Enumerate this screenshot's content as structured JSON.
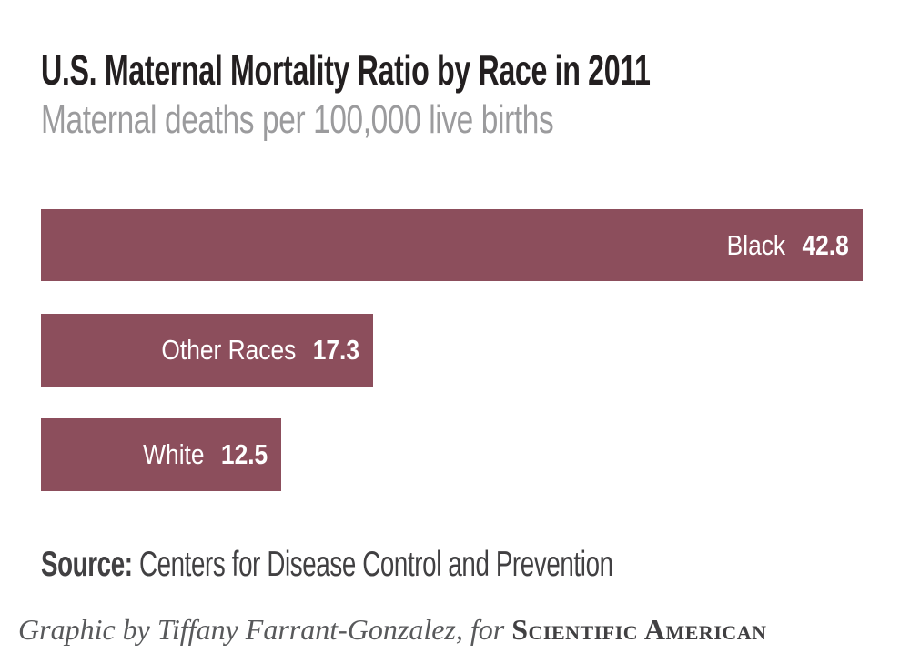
{
  "header": {
    "title": "U.S. Maternal Mortality Ratio by Race in 2011",
    "subtitle": "Maternal deaths per 100,000 live births"
  },
  "chart_data": {
    "type": "bar",
    "orientation": "horizontal",
    "title": "U.S. Maternal Mortality Ratio by Race in 2011",
    "subtitle": "Maternal deaths per 100,000 live births",
    "categories": [
      "Black",
      "Other Races",
      "White"
    ],
    "values": [
      42.8,
      17.3,
      12.5
    ],
    "value_labels": [
      "42.8",
      "17.3",
      "12.5"
    ],
    "xlim": [
      0,
      42.8
    ],
    "grid": false,
    "legend": "none",
    "value_label_position": "inside-right",
    "bar_color": "#8c4e5c",
    "bar_text_color": "#ffffff"
  },
  "bars": [
    {
      "label": "Black",
      "value": "42.8"
    },
    {
      "label": "Other Races",
      "value": "17.3"
    },
    {
      "label": "White",
      "value": "12.5"
    }
  ],
  "source": {
    "prefix": "Source:",
    "text": " Centers for Disease Control and Prevention"
  },
  "credit": {
    "byline": "Graphic by Tiffany Farrant-Gonzalez, for",
    "publication": "Scientific American"
  },
  "colors": {
    "background": "#ffffff",
    "title": "#231f20",
    "subtitle": "#9b9b9d",
    "bar": "#8c4e5c",
    "bar_text": "#ffffff",
    "source_text": "#414042",
    "credit_text": "#58595b",
    "publication_text": "#414042"
  }
}
